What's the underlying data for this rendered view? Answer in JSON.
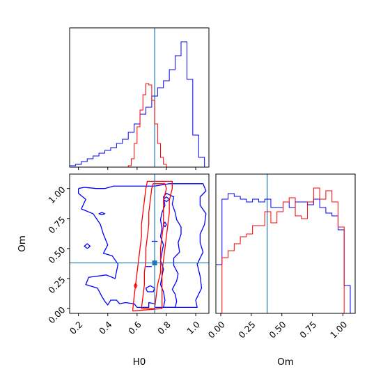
{
  "chart_data": {
    "type": "corner",
    "parameters": [
      "H0",
      "Om"
    ],
    "truth": {
      "H0": 0.72,
      "Om": 0.38
    },
    "colors": {
      "series_a": "#0000ff",
      "series_b": "#ff0000",
      "truth": "#1f77b4"
    },
    "panels": [
      {
        "id": "hist_H0",
        "type": "step-histogram",
        "xlabel": "",
        "xlim": [
          0.14,
          1.09
        ],
        "ylim": [
          0,
          1.0
        ],
        "y_ticks_shown": false,
        "x_ticks": [
          0.2,
          0.4,
          0.6,
          0.8,
          1.0
        ],
        "x_tick_labels_shown": false,
        "truth_line_x": 0.72,
        "series": [
          {
            "color": "#0000ff",
            "edges": [
              0.14,
              0.18,
              0.22,
              0.26,
              0.3,
              0.34,
              0.38,
              0.42,
              0.46,
              0.5,
              0.54,
              0.58,
              0.62,
              0.66,
              0.7,
              0.74,
              0.78,
              0.82,
              0.86,
              0.9,
              0.94,
              0.98,
              1.02,
              1.06
            ],
            "values": [
              0.01,
              0.02,
              0.04,
              0.06,
              0.08,
              0.1,
              0.12,
              0.14,
              0.17,
              0.2,
              0.25,
              0.31,
              0.38,
              0.43,
              0.51,
              0.57,
              0.62,
              0.7,
              0.8,
              0.9,
              0.63,
              0.23,
              0.07
            ]
          },
          {
            "color": "#ff0000",
            "edges": [
              0.54,
              0.56,
              0.58,
              0.6,
              0.62,
              0.64,
              0.66,
              0.68,
              0.7,
              0.72,
              0.74,
              0.76,
              0.78,
              0.8
            ],
            "values": [
              0.01,
              0.06,
              0.17,
              0.29,
              0.41,
              0.52,
              0.6,
              0.59,
              0.48,
              0.31,
              0.17,
              0.07,
              0.02
            ]
          }
        ]
      },
      {
        "id": "contour_H0_Om",
        "type": "contour",
        "xlabel": "H0",
        "ylabel": "Om",
        "xlim": [
          0.14,
          1.09
        ],
        "ylim": [
          -0.04,
          1.12
        ],
        "x_ticks": [
          0.2,
          0.4,
          0.6,
          0.8,
          1.0
        ],
        "x_tick_labels": [
          "0.2",
          "0.4",
          "0.6",
          "0.8",
          "1.0"
        ],
        "y_ticks": [
          0.0,
          0.25,
          0.5,
          0.75,
          1.0
        ],
        "y_tick_labels": [
          "0.00",
          "0.25",
          "0.50",
          "0.75",
          "1.00"
        ],
        "truth_point": [
          0.72,
          0.38
        ],
        "contours": [
          {
            "color": "#0000ff",
            "points": [
              [
                0.2,
                1.0
              ],
              [
                0.24,
                1.01
              ],
              [
                0.32,
                1.0
              ],
              [
                0.38,
                1.0
              ],
              [
                0.44,
                1.02
              ],
              [
                0.6,
                1.02
              ],
              [
                0.72,
                1.02
              ],
              [
                0.82,
                1.04
              ],
              [
                1.05,
                1.04
              ],
              [
                1.07,
                0.98
              ],
              [
                1.03,
                0.93
              ],
              [
                1.03,
                0.86
              ],
              [
                1.07,
                0.79
              ],
              [
                1.06,
                0.7
              ],
              [
                1.03,
                0.62
              ],
              [
                1.03,
                0.55
              ],
              [
                1.05,
                0.47
              ],
              [
                1.01,
                0.37
              ],
              [
                1.03,
                0.27
              ],
              [
                1.04,
                0.17
              ],
              [
                1.0,
                0.07
              ],
              [
                1.01,
                0.01
              ],
              [
                0.72,
                0.01
              ],
              [
                0.72,
                0.04
              ],
              [
                0.68,
                0.05
              ],
              [
                0.68,
                0.01
              ],
              [
                0.6,
                0.01
              ],
              [
                0.58,
                0.04
              ],
              [
                0.52,
                0.05
              ],
              [
                0.48,
                0.04
              ],
              [
                0.46,
                0.07
              ],
              [
                0.42,
                0.07
              ],
              [
                0.4,
                0.03
              ],
              [
                0.38,
                0.06
              ],
              [
                0.36,
                0.1
              ],
              [
                0.33,
                0.17
              ],
              [
                0.25,
                0.2
              ],
              [
                0.27,
                0.26
              ],
              [
                0.39,
                0.28
              ],
              [
                0.45,
                0.25
              ],
              [
                0.47,
                0.37
              ],
              [
                0.43,
                0.44
              ],
              [
                0.37,
                0.46
              ],
              [
                0.4,
                0.53
              ],
              [
                0.37,
                0.62
              ],
              [
                0.35,
                0.7
              ],
              [
                0.3,
                0.79
              ],
              [
                0.22,
                0.83
              ],
              [
                0.25,
                0.91
              ],
              [
                0.2,
                0.96
              ],
              [
                0.2,
                1.0
              ]
            ]
          },
          {
            "color": "#0000ff",
            "points": [
              [
                0.86,
                0.01
              ],
              [
                0.87,
                0.06
              ],
              [
                0.86,
                0.12
              ],
              [
                0.84,
                0.16
              ],
              [
                0.87,
                0.23
              ],
              [
                0.88,
                0.29
              ],
              [
                0.85,
                0.36
              ],
              [
                0.85,
                0.42
              ],
              [
                0.89,
                0.47
              ],
              [
                0.88,
                0.55
              ],
              [
                0.9,
                0.62
              ],
              [
                0.9,
                0.68
              ],
              [
                0.87,
                0.74
              ],
              [
                0.86,
                0.8
              ],
              [
                0.84,
                0.87
              ],
              [
                0.85,
                0.93
              ],
              [
                0.8,
                0.96
              ],
              [
                0.78,
                0.93
              ],
              [
                0.79,
                0.86
              ],
              [
                0.77,
                0.8
              ],
              [
                0.76,
                0.74
              ],
              [
                0.77,
                0.67
              ],
              [
                0.76,
                0.6
              ],
              [
                0.78,
                0.53
              ],
              [
                0.77,
                0.47
              ],
              [
                0.76,
                0.4
              ],
              [
                0.78,
                0.33
              ],
              [
                0.77,
                0.27
              ],
              [
                0.76,
                0.2
              ],
              [
                0.78,
                0.14
              ],
              [
                0.79,
                0.07
              ],
              [
                0.78,
                0.01
              ],
              [
                0.86,
                0.01
              ]
            ]
          },
          {
            "color": "#0000ff",
            "points": [
              [
                0.8,
                0.89
              ],
              [
                0.82,
                0.91
              ],
              [
                0.8,
                0.93
              ],
              [
                0.78,
                0.91
              ],
              [
                0.8,
                0.89
              ]
            ]
          },
          {
            "color": "#0000ff",
            "points": [
              [
                0.36,
                0.78
              ],
              [
                0.38,
                0.79
              ],
              [
                0.36,
                0.8
              ],
              [
                0.34,
                0.79
              ],
              [
                0.36,
                0.78
              ]
            ]
          },
          {
            "color": "#0000ff",
            "points": [
              [
                0.26,
                0.5
              ],
              [
                0.28,
                0.52
              ],
              [
                0.26,
                0.54
              ],
              [
                0.24,
                0.52
              ],
              [
                0.26,
                0.5
              ]
            ]
          },
          {
            "color": "#0000ff",
            "points": [
              [
                0.79,
                0.68
              ],
              [
                0.8,
                0.7
              ],
              [
                0.79,
                0.72
              ],
              [
                0.78,
                0.7
              ],
              [
                0.79,
                0.68
              ]
            ]
          },
          {
            "color": "#0000ff",
            "points": [
              [
                0.7,
                0.56
              ],
              [
                0.74,
                0.56
              ]
            ]
          },
          {
            "color": "#0000ff",
            "points": [
              [
                0.66,
                0.35
              ],
              [
                0.7,
                0.35
              ]
            ]
          },
          {
            "color": "#0000ff",
            "points": [
              [
                0.67,
                0.14
              ],
              [
                0.71,
                0.14
              ],
              [
                0.72,
                0.17
              ],
              [
                0.69,
                0.19
              ],
              [
                0.66,
                0.17
              ],
              [
                0.67,
                0.14
              ]
            ]
          },
          {
            "color": "#ff0000",
            "points": [
              [
                0.63,
                0.0
              ],
              [
                0.64,
                0.1
              ],
              [
                0.65,
                0.2
              ],
              [
                0.65,
                0.3
              ],
              [
                0.66,
                0.4
              ],
              [
                0.66,
                0.5
              ],
              [
                0.67,
                0.6
              ],
              [
                0.68,
                0.7
              ],
              [
                0.68,
                0.8
              ],
              [
                0.69,
                0.9
              ],
              [
                0.7,
                1.0
              ],
              [
                0.71,
                1.04
              ],
              [
                0.79,
                1.04
              ],
              [
                0.8,
                1.0
              ],
              [
                0.78,
                0.9
              ],
              [
                0.78,
                0.8
              ],
              [
                0.78,
                0.7
              ],
              [
                0.77,
                0.6
              ],
              [
                0.76,
                0.5
              ],
              [
                0.76,
                0.4
              ],
              [
                0.76,
                0.3
              ],
              [
                0.74,
                0.2
              ],
              [
                0.73,
                0.1
              ],
              [
                0.72,
                0.0
              ],
              [
                0.63,
                0.0
              ]
            ]
          },
          {
            "color": "#ff0000",
            "points": [
              [
                0.57,
                -0.02
              ],
              [
                0.58,
                0.1
              ],
              [
                0.59,
                0.2
              ],
              [
                0.6,
                0.3
              ],
              [
                0.61,
                0.4
              ],
              [
                0.62,
                0.5
              ],
              [
                0.63,
                0.6
              ],
              [
                0.63,
                0.7
              ],
              [
                0.64,
                0.8
              ],
              [
                0.65,
                0.9
              ],
              [
                0.66,
                1.0
              ],
              [
                0.67,
                1.06
              ],
              [
                0.84,
                1.06
              ],
              [
                0.84,
                1.0
              ],
              [
                0.82,
                0.9
              ],
              [
                0.82,
                0.8
              ],
              [
                0.81,
                0.7
              ],
              [
                0.8,
                0.6
              ],
              [
                0.79,
                0.5
              ],
              [
                0.78,
                0.4
              ],
              [
                0.77,
                0.3
              ],
              [
                0.77,
                0.2
              ],
              [
                0.77,
                0.1
              ],
              [
                0.77,
                0.0
              ],
              [
                0.57,
                -0.02
              ]
            ]
          },
          {
            "color": "#ff0000",
            "points": [
              [
                0.59,
                0.17
              ],
              [
                0.6,
                0.19
              ],
              [
                0.59,
                0.21
              ],
              [
                0.58,
                0.19
              ],
              [
                0.59,
                0.17
              ]
            ]
          }
        ]
      },
      {
        "id": "hist_Om",
        "type": "step-histogram",
        "xlabel": "Om",
        "xlim": [
          -0.04,
          1.1
        ],
        "ylim": [
          0,
          1.0
        ],
        "y_ticks_shown": false,
        "x_ticks": [
          0.0,
          0.25,
          0.5,
          0.75,
          1.0
        ],
        "x_tick_labels": [
          "0.00",
          "0.25",
          "0.50",
          "0.75",
          "1.00"
        ],
        "truth_line_x": 0.38,
        "series": [
          {
            "color": "#0000ff",
            "edges": [
              -0.04,
              0.01,
              0.06,
              0.11,
              0.16,
              0.21,
              0.26,
              0.31,
              0.36,
              0.41,
              0.46,
              0.51,
              0.56,
              0.61,
              0.66,
              0.71,
              0.76,
              0.81,
              0.86,
              0.91,
              0.96,
              1.01,
              1.06
            ],
            "values": [
              0.35,
              0.82,
              0.86,
              0.84,
              0.82,
              0.8,
              0.82,
              0.8,
              0.82,
              0.76,
              0.76,
              0.8,
              0.76,
              0.8,
              0.8,
              0.78,
              0.82,
              0.76,
              0.72,
              0.7,
              0.6,
              0.2
            ]
          },
          {
            "color": "#ff0000",
            "edges": [
              0.01,
              0.06,
              0.11,
              0.16,
              0.21,
              0.26,
              0.31,
              0.36,
              0.41,
              0.46,
              0.51,
              0.56,
              0.61,
              0.66,
              0.71,
              0.76,
              0.81,
              0.86,
              0.91,
              0.96,
              1.01
            ],
            "values": [
              0.4,
              0.45,
              0.5,
              0.55,
              0.57,
              0.63,
              0.63,
              0.73,
              0.65,
              0.73,
              0.8,
              0.83,
              0.7,
              0.68,
              0.8,
              0.9,
              0.82,
              0.88,
              0.8,
              0.62
            ]
          }
        ]
      }
    ]
  }
}
